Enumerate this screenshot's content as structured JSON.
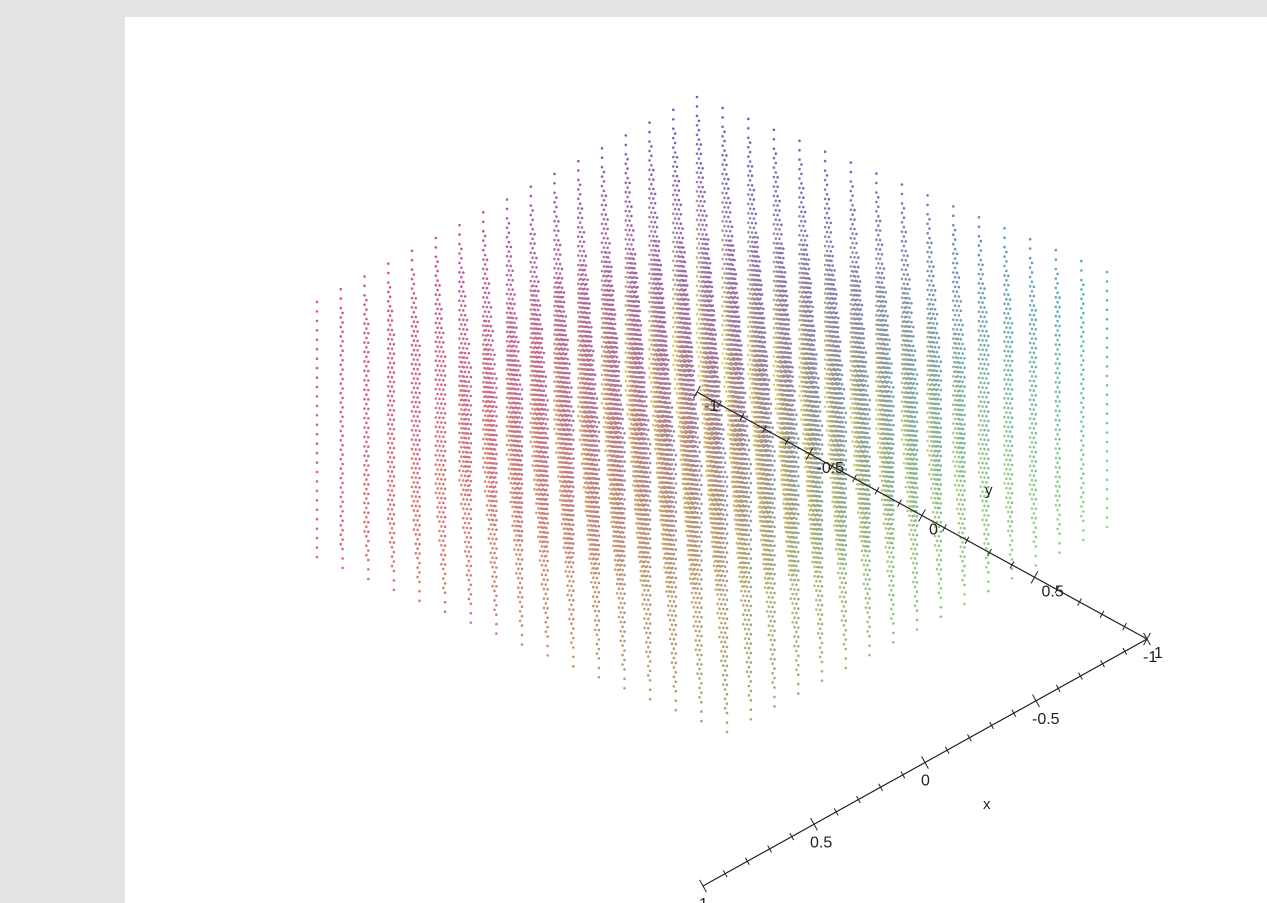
{
  "chart_data": {
    "type": "scatter3d",
    "description_title": "",
    "axes": {
      "x": {
        "label": "x",
        "ticks": [
          "-1",
          "-0.5",
          "0",
          "0.5",
          "1"
        ],
        "range": [
          -1,
          1
        ]
      },
      "y": {
        "label": "y",
        "ticks": [
          "-1",
          "-0.5",
          "0",
          "0.5",
          "1"
        ],
        "range": [
          -1,
          1
        ]
      },
      "z": {
        "label": "",
        "ticks": [],
        "range": [
          -1,
          1
        ]
      }
    },
    "grid": {
      "x_values": [
        -1,
        -0.875,
        -0.75,
        -0.625,
        -0.5,
        -0.375,
        -0.25,
        -0.125,
        0,
        0.125,
        0.25,
        0.375,
        0.5,
        0.625,
        0.75,
        0.875,
        1
      ],
      "y_values": [
        -1,
        -0.875,
        -0.75,
        -0.625,
        -0.5,
        -0.375,
        -0.25,
        -0.125,
        0,
        0.125,
        0.25,
        0.375,
        0.5,
        0.625,
        0.75,
        0.875,
        1
      ],
      "z_levels": 28
    },
    "color_by": "position (rgb gradient)",
    "colors": {
      "top": "#6a5acd",
      "left": "#e0508f",
      "right": "#40e0c0",
      "bottom": "#e8e050",
      "bottom_left": "#e86060",
      "bottom_right": "#60e070"
    },
    "grid_on": false,
    "legend": "none"
  }
}
